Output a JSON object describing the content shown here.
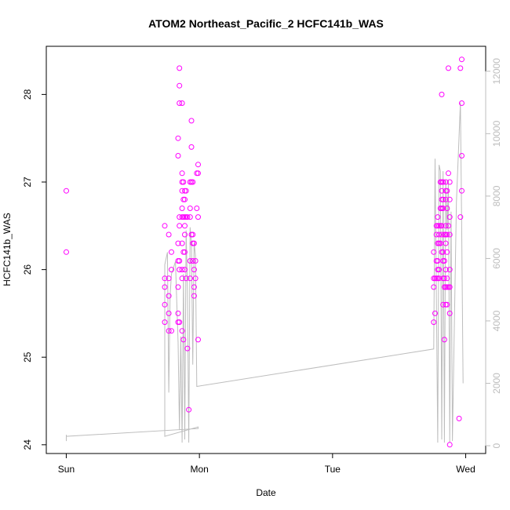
{
  "chart_data": {
    "type": "scatter",
    "title": "ATOM2 Northeast_Pacific_2 HCFC141b_WAS",
    "xlabel": "Date",
    "ylabel": "HCFC141b_WAS",
    "x_ticks": [
      "Sun",
      "Mon",
      "Tue",
      "Wed"
    ],
    "xlim_days": [
      -0.15,
      3.15
    ],
    "y_ticks": [
      24,
      25,
      26,
      27,
      28
    ],
    "ylim": [
      23.9,
      28.55
    ],
    "y2_ticks": [
      0,
      2000,
      4000,
      6000,
      8000,
      10000,
      12000
    ],
    "y2lim": [
      -250,
      12800
    ],
    "colors": {
      "points": "#ff00ff",
      "line": "#bdbdbd",
      "axis": "#000000",
      "right_axis": "#bdbdbd"
    },
    "series": [
      {
        "type": "scatter",
        "points": [
          [
            0.0,
            26.9
          ],
          [
            0.0,
            26.2
          ],
          [
            0.74,
            26.5
          ],
          [
            0.74,
            25.9
          ],
          [
            0.74,
            25.8
          ],
          [
            0.74,
            25.6
          ],
          [
            0.74,
            25.4
          ],
          [
            0.77,
            26.4
          ],
          [
            0.77,
            25.9
          ],
          [
            0.77,
            25.7
          ],
          [
            0.77,
            25.5
          ],
          [
            0.77,
            25.3
          ],
          [
            0.79,
            26.2
          ],
          [
            0.79,
            26.0
          ],
          [
            0.79,
            25.3
          ],
          [
            0.84,
            27.5
          ],
          [
            0.84,
            27.3
          ],
          [
            0.84,
            26.3
          ],
          [
            0.84,
            26.1
          ],
          [
            0.84,
            25.8
          ],
          [
            0.84,
            25.5
          ],
          [
            0.84,
            25.4
          ],
          [
            0.85,
            28.3
          ],
          [
            0.85,
            28.1
          ],
          [
            0.85,
            27.9
          ],
          [
            0.85,
            26.6
          ],
          [
            0.85,
            26.5
          ],
          [
            0.85,
            26.1
          ],
          [
            0.85,
            26.0
          ],
          [
            0.85,
            25.4
          ],
          [
            0.87,
            27.9
          ],
          [
            0.87,
            27.1
          ],
          [
            0.87,
            27.0
          ],
          [
            0.87,
            26.9
          ],
          [
            0.87,
            26.7
          ],
          [
            0.87,
            26.6
          ],
          [
            0.87,
            26.3
          ],
          [
            0.87,
            26.0
          ],
          [
            0.87,
            25.9
          ],
          [
            0.87,
            25.3
          ],
          [
            0.88,
            27.0
          ],
          [
            0.88,
            26.8
          ],
          [
            0.88,
            26.6
          ],
          [
            0.88,
            26.2
          ],
          [
            0.88,
            25.2
          ],
          [
            0.89,
            26.9
          ],
          [
            0.89,
            26.8
          ],
          [
            0.89,
            26.6
          ],
          [
            0.89,
            26.5
          ],
          [
            0.89,
            26.4
          ],
          [
            0.89,
            26.2
          ],
          [
            0.89,
            26.0
          ],
          [
            0.9,
            26.9
          ],
          [
            0.9,
            26.6
          ],
          [
            0.9,
            25.9
          ],
          [
            0.91,
            26.6
          ],
          [
            0.91,
            25.1
          ],
          [
            0.92,
            24.4
          ],
          [
            0.93,
            27.0
          ],
          [
            0.93,
            26.7
          ],
          [
            0.93,
            26.6
          ],
          [
            0.93,
            26.1
          ],
          [
            0.93,
            25.9
          ],
          [
            0.94,
            27.7
          ],
          [
            0.94,
            27.4
          ],
          [
            0.94,
            27.0
          ],
          [
            0.94,
            26.4
          ],
          [
            0.95,
            27.0
          ],
          [
            0.95,
            26.4
          ],
          [
            0.95,
            26.3
          ],
          [
            0.95,
            26.1
          ],
          [
            0.96,
            26.3
          ],
          [
            0.96,
            26.0
          ],
          [
            0.96,
            25.8
          ],
          [
            0.96,
            25.7
          ],
          [
            0.97,
            26.1
          ],
          [
            0.97,
            25.9
          ],
          [
            0.98,
            27.1
          ],
          [
            0.98,
            26.7
          ],
          [
            0.99,
            27.2
          ],
          [
            0.99,
            27.1
          ],
          [
            0.99,
            26.6
          ],
          [
            0.99,
            25.2
          ],
          [
            2.76,
            26.2
          ],
          [
            2.76,
            25.9
          ],
          [
            2.76,
            25.8
          ],
          [
            2.76,
            25.4
          ],
          [
            2.77,
            25.9
          ],
          [
            2.77,
            25.5
          ],
          [
            2.78,
            26.5
          ],
          [
            2.78,
            26.4
          ],
          [
            2.78,
            26.1
          ],
          [
            2.78,
            25.9
          ],
          [
            2.79,
            26.6
          ],
          [
            2.79,
            26.5
          ],
          [
            2.79,
            26.3
          ],
          [
            2.79,
            26.1
          ],
          [
            2.79,
            26.0
          ],
          [
            2.79,
            25.9
          ],
          [
            2.8,
            26.5
          ],
          [
            2.8,
            26.4
          ],
          [
            2.8,
            26.3
          ],
          [
            2.8,
            26.0
          ],
          [
            2.8,
            25.9
          ],
          [
            2.81,
            27.0
          ],
          [
            2.81,
            26.7
          ],
          [
            2.81,
            26.5
          ],
          [
            2.81,
            26.3
          ],
          [
            2.82,
            28.0
          ],
          [
            2.82,
            27.0
          ],
          [
            2.82,
            26.9
          ],
          [
            2.82,
            26.8
          ],
          [
            2.82,
            26.7
          ],
          [
            2.82,
            26.5
          ],
          [
            2.82,
            26.4
          ],
          [
            2.82,
            26.2
          ],
          [
            2.83,
            27.0
          ],
          [
            2.83,
            26.8
          ],
          [
            2.83,
            26.7
          ],
          [
            2.83,
            26.2
          ],
          [
            2.83,
            26.1
          ],
          [
            2.83,
            25.9
          ],
          [
            2.83,
            25.6
          ],
          [
            2.84,
            26.4
          ],
          [
            2.84,
            26.1
          ],
          [
            2.84,
            25.9
          ],
          [
            2.84,
            25.8
          ],
          [
            2.84,
            25.2
          ],
          [
            2.85,
            27.0
          ],
          [
            2.85,
            26.9
          ],
          [
            2.85,
            26.8
          ],
          [
            2.85,
            26.5
          ],
          [
            2.85,
            26.4
          ],
          [
            2.85,
            26.3
          ],
          [
            2.85,
            26.0
          ],
          [
            2.85,
            25.8
          ],
          [
            2.85,
            25.6
          ],
          [
            2.86,
            26.9
          ],
          [
            2.86,
            26.7
          ],
          [
            2.86,
            26.4
          ],
          [
            2.86,
            26.2
          ],
          [
            2.86,
            25.9
          ],
          [
            2.86,
            25.8
          ],
          [
            2.86,
            25.6
          ],
          [
            2.87,
            28.3
          ],
          [
            2.87,
            27.1
          ],
          [
            2.87,
            26.5
          ],
          [
            2.87,
            25.8
          ],
          [
            2.88,
            27.0
          ],
          [
            2.88,
            26.8
          ],
          [
            2.88,
            26.6
          ],
          [
            2.88,
            26.4
          ],
          [
            2.88,
            26.0
          ],
          [
            2.88,
            25.8
          ],
          [
            2.88,
            25.5
          ],
          [
            2.88,
            24.0
          ],
          [
            2.95,
            24.3
          ],
          [
            2.96,
            28.3
          ],
          [
            2.96,
            26.6
          ],
          [
            2.97,
            28.4
          ],
          [
            2.97,
            27.9
          ],
          [
            2.97,
            27.3
          ],
          [
            2.97,
            26.9
          ]
        ]
      },
      {
        "type": "line",
        "axis": "right",
        "points": [
          [
            0.0,
            350
          ],
          [
            0.0,
            150
          ],
          [
            0.0,
            300
          ],
          [
            0.99,
            550
          ],
          [
            0.99,
            600
          ],
          [
            0.74,
            300
          ],
          [
            0.74,
            5800
          ],
          [
            0.76,
            6200
          ],
          [
            0.77,
            1700
          ],
          [
            0.78,
            4800
          ],
          [
            0.79,
            5500
          ],
          [
            0.82,
            5900
          ],
          [
            0.84,
            3300
          ],
          [
            0.85,
            500
          ],
          [
            0.86,
            3500
          ],
          [
            0.87,
            100
          ],
          [
            0.88,
            5500
          ],
          [
            0.89,
            200
          ],
          [
            0.9,
            6900
          ],
          [
            0.91,
            5000
          ],
          [
            0.92,
            100
          ],
          [
            0.93,
            7000
          ],
          [
            0.94,
            6500
          ],
          [
            0.95,
            2600
          ],
          [
            0.96,
            6500
          ],
          [
            0.97,
            6100
          ],
          [
            0.98,
            1900
          ],
          [
            0.98,
            1900
          ],
          [
            2.76,
            3100
          ],
          [
            2.77,
            9200
          ],
          [
            2.79,
            100
          ],
          [
            2.8,
            9000
          ],
          [
            2.81,
            8800
          ],
          [
            2.82,
            200
          ],
          [
            2.83,
            8800
          ],
          [
            2.84,
            100
          ],
          [
            2.85,
            8500
          ],
          [
            2.86,
            6900
          ],
          [
            2.87,
            8500
          ],
          [
            2.88,
            100
          ],
          [
            2.89,
            7500
          ],
          [
            2.9,
            150
          ],
          [
            2.93,
            7800
          ],
          [
            2.96,
            11000
          ],
          [
            2.97,
            6800
          ],
          [
            2.98,
            2000
          ]
        ]
      }
    ]
  }
}
